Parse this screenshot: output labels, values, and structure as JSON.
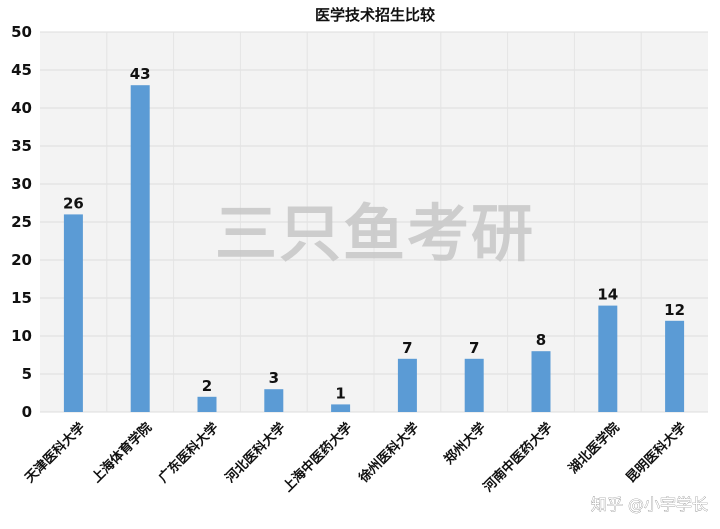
{
  "chart_data": {
    "type": "bar",
    "title": "医学技术招生比较",
    "categories": [
      "天津医科大学",
      "上海体育学院",
      "广东医科大学",
      "河北医科大学",
      "上海中医药大学",
      "徐州医科大学",
      "郑州大学",
      "河南中医药大学",
      "湖北医学院",
      "昆明医科大学"
    ],
    "values": [
      26,
      43,
      2,
      3,
      1,
      7,
      7,
      8,
      14,
      12
    ],
    "ylim": [
      0,
      50
    ],
    "yticks": [
      0,
      5,
      10,
      15,
      20,
      25,
      30,
      35,
      40,
      45,
      50
    ],
    "xlabel": "",
    "ylabel": "",
    "grid": true,
    "data_labels": true,
    "bar_color": "#5b9bd5"
  },
  "watermark": "三只鱼考研",
  "credit": "知乎 @小宇学长"
}
